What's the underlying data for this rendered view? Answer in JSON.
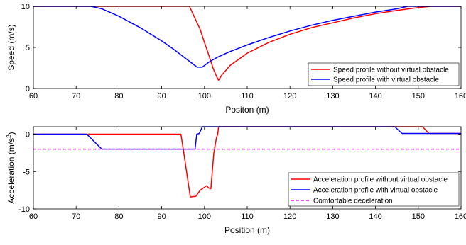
{
  "chart_data": [
    {
      "type": "line",
      "xlabel": "Positon (m)",
      "ylabel": "Speed (m/s)",
      "xlim": [
        60,
        160
      ],
      "ylim": [
        0,
        10
      ],
      "xticks": [
        60,
        70,
        80,
        90,
        100,
        110,
        120,
        130,
        140,
        150,
        160
      ],
      "yticks": [
        0,
        5,
        10
      ],
      "grid": false,
      "legend_position": "bottom-right",
      "series": [
        {
          "name": "Speed profile without virtual obstacle",
          "color": "#ff0000",
          "points": [
            [
              60,
              10
            ],
            [
              96.5,
              10
            ],
            [
              98,
              8.3
            ],
            [
              99,
              7.2
            ],
            [
              100,
              5.6
            ],
            [
              101,
              4.1
            ],
            [
              102,
              2.5
            ],
            [
              102.8,
              1.5
            ],
            [
              103.3,
              1.0
            ],
            [
              104,
              1.6
            ],
            [
              106,
              2.8
            ],
            [
              110,
              4.3
            ],
            [
              115,
              5.6
            ],
            [
              120,
              6.6
            ],
            [
              125,
              7.4
            ],
            [
              130,
              8.0
            ],
            [
              135,
              8.6
            ],
            [
              140,
              9.1
            ],
            [
              145,
              9.5
            ],
            [
              150,
              9.85
            ],
            [
              153,
              10
            ],
            [
              160,
              10
            ]
          ]
        },
        {
          "name": "Speed profile with virtual obstacle",
          "color": "#0000ff",
          "points": [
            [
              60,
              10
            ],
            [
              73.5,
              10
            ],
            [
              76,
              9.7
            ],
            [
              80,
              8.8
            ],
            [
              85,
              7.4
            ],
            [
              90,
              5.8
            ],
            [
              93,
              4.7
            ],
            [
              96,
              3.5
            ],
            [
              98.3,
              2.6
            ],
            [
              99.5,
              2.6
            ],
            [
              101,
              3.2
            ],
            [
              103,
              3.8
            ],
            [
              106,
              4.5
            ],
            [
              110,
              5.3
            ],
            [
              115,
              6.2
            ],
            [
              120,
              7.0
            ],
            [
              125,
              7.7
            ],
            [
              130,
              8.3
            ],
            [
              135,
              8.8
            ],
            [
              140,
              9.3
            ],
            [
              145,
              9.7
            ],
            [
              147.5,
              10
            ],
            [
              160,
              10
            ]
          ]
        }
      ]
    },
    {
      "type": "line",
      "xlabel": "Position (m)",
      "ylabel": "Acceleration (m/s²)",
      "ylabel_main": "Acceleration (m/s",
      "ylabel_sup": "2",
      "ylabel_end": ")",
      "xlim": [
        60,
        160
      ],
      "ylim": [
        -10,
        1
      ],
      "xticks": [
        60,
        70,
        80,
        90,
        100,
        110,
        120,
        130,
        140,
        150,
        160
      ],
      "yticks": [
        -10,
        -5,
        0
      ],
      "grid": false,
      "legend_position": "bottom-right",
      "series": [
        {
          "name": "Acceleration profile without virtual obstacle",
          "color": "#ff0000",
          "style": "solid",
          "points": [
            [
              60,
              0
            ],
            [
              94.5,
              0
            ],
            [
              95.3,
              -3
            ],
            [
              96.2,
              -6.5
            ],
            [
              96.7,
              -8.4
            ],
            [
              98,
              -8.3
            ],
            [
              99,
              -7.5
            ],
            [
              100.5,
              -6.9
            ],
            [
              101,
              -7.2
            ],
            [
              101.5,
              -7.3
            ],
            [
              102.2,
              -2.5
            ],
            [
              102.8,
              -0.5
            ],
            [
              103.1,
              0
            ],
            [
              103.3,
              1
            ],
            [
              144,
              1
            ],
            [
              151,
              1
            ],
            [
              152.5,
              0.1
            ],
            [
              160,
              0.1
            ]
          ]
        },
        {
          "name": "Acceleration profile with virtual obstacle",
          "color": "#0000ff",
          "style": "solid",
          "points": [
            [
              60,
              0
            ],
            [
              72.5,
              0
            ],
            [
              76,
              -2
            ],
            [
              97.8,
              -2
            ],
            [
              98.2,
              0
            ],
            [
              98.8,
              0.1
            ],
            [
              99.5,
              1
            ],
            [
              144.5,
              1
            ],
            [
              146.2,
              0.1
            ],
            [
              160,
              0.1
            ]
          ]
        },
        {
          "name": "Comfortable deceleration",
          "color": "#ff00ff",
          "style": "dashed",
          "points": [
            [
              60,
              -2
            ],
            [
              160,
              -2
            ]
          ]
        }
      ]
    }
  ]
}
